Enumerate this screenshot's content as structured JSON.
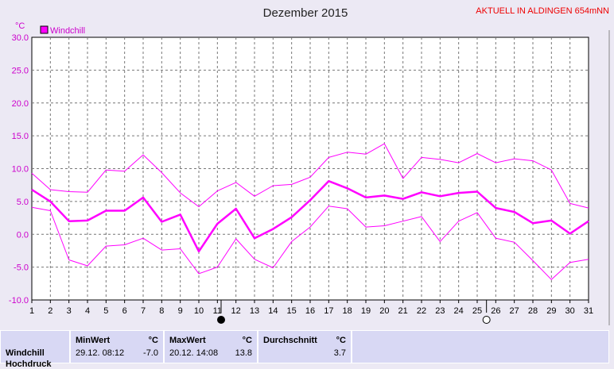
{
  "header": {
    "title": "Dezember 2015",
    "station": "AKTUELL IN ALDINGEN 654mNN"
  },
  "colors": {
    "background": "#ece9f4",
    "series": "#ff00ff",
    "grid": "#777777",
    "axis_text": "#cc00cc",
    "stats_bg": "#d8d8f4"
  },
  "chart_data": {
    "type": "line",
    "unit": "°C",
    "legend": "Windchill",
    "legend_position": "top-left",
    "grid": true,
    "xlim": [
      1,
      31
    ],
    "ylim": [
      -10,
      30
    ],
    "x": [
      1,
      2,
      3,
      4,
      5,
      6,
      7,
      8,
      9,
      10,
      11,
      12,
      13,
      14,
      15,
      16,
      17,
      18,
      19,
      20,
      21,
      22,
      23,
      24,
      25,
      26,
      27,
      28,
      29,
      30,
      31
    ],
    "x_ticks": [
      "1",
      "2",
      "3",
      "4",
      "5",
      "6",
      "7",
      "8",
      "9",
      "10",
      "11",
      "12",
      "13",
      "14",
      "15",
      "16",
      "17",
      "18",
      "19",
      "20",
      "21",
      "22",
      "23",
      "24",
      "25",
      "26",
      "27",
      "28",
      "29",
      "30",
      "31"
    ],
    "y_ticks": [
      "30.0",
      "25.0",
      "20.0",
      "15.0",
      "10.0",
      "5.0",
      "0.0",
      "-5.0",
      "-10.0"
    ],
    "series": [
      {
        "name": "Windchill",
        "role": "max",
        "values": [
          9.3,
          6.8,
          6.5,
          6.4,
          9.8,
          9.6,
          12.1,
          9.4,
          6.3,
          4.2,
          6.6,
          7.9,
          5.8,
          7.4,
          7.6,
          8.7,
          11.7,
          12.5,
          12.2,
          13.8,
          8.5,
          11.7,
          11.4,
          10.9,
          12.3,
          10.9,
          11.5,
          11.2,
          9.8,
          4.7,
          4.0
        ]
      },
      {
        "name": "Windchill",
        "role": "mean",
        "values": [
          6.8,
          5.0,
          2.0,
          2.1,
          3.6,
          3.6,
          5.6,
          1.9,
          3.0,
          -2.6,
          1.6,
          3.9,
          -0.6,
          0.8,
          2.6,
          5.2,
          8.1,
          7.0,
          5.6,
          5.9,
          5.4,
          6.4,
          5.8,
          6.3,
          6.5,
          4.0,
          3.4,
          1.7,
          2.1,
          0.1,
          2.0
        ]
      },
      {
        "name": "Windchill",
        "role": "min",
        "values": [
          4.1,
          3.6,
          -3.9,
          -4.8,
          -1.8,
          -1.6,
          -0.6,
          -2.4,
          -2.2,
          -6.0,
          -5.0,
          -0.7,
          -3.8,
          -5.1,
          -1.1,
          1.1,
          4.3,
          3.9,
          1.1,
          1.3,
          2.0,
          2.7,
          -1.1,
          2.0,
          3.3,
          -0.6,
          -1.2,
          -4.0,
          -6.9,
          -4.3,
          -3.8
        ]
      }
    ],
    "moon_phases": [
      {
        "day": 11.2,
        "phase": "new"
      },
      {
        "day": 25.5,
        "phase": "full"
      }
    ]
  },
  "stats": {
    "row_label": "Windchill",
    "row_label_cut": "Hochdruck",
    "min_header": "MinWert",
    "min_unit": "°C",
    "min_datetime": "29.12.  08:12",
    "min_value": "-7.0",
    "max_header": "MaxWert",
    "max_unit": "°C",
    "max_datetime": "20.12.  14:08",
    "max_value": "13.8",
    "avg_header": "Durchschnitt",
    "avg_unit": "°C",
    "avg_value": "3.7"
  }
}
